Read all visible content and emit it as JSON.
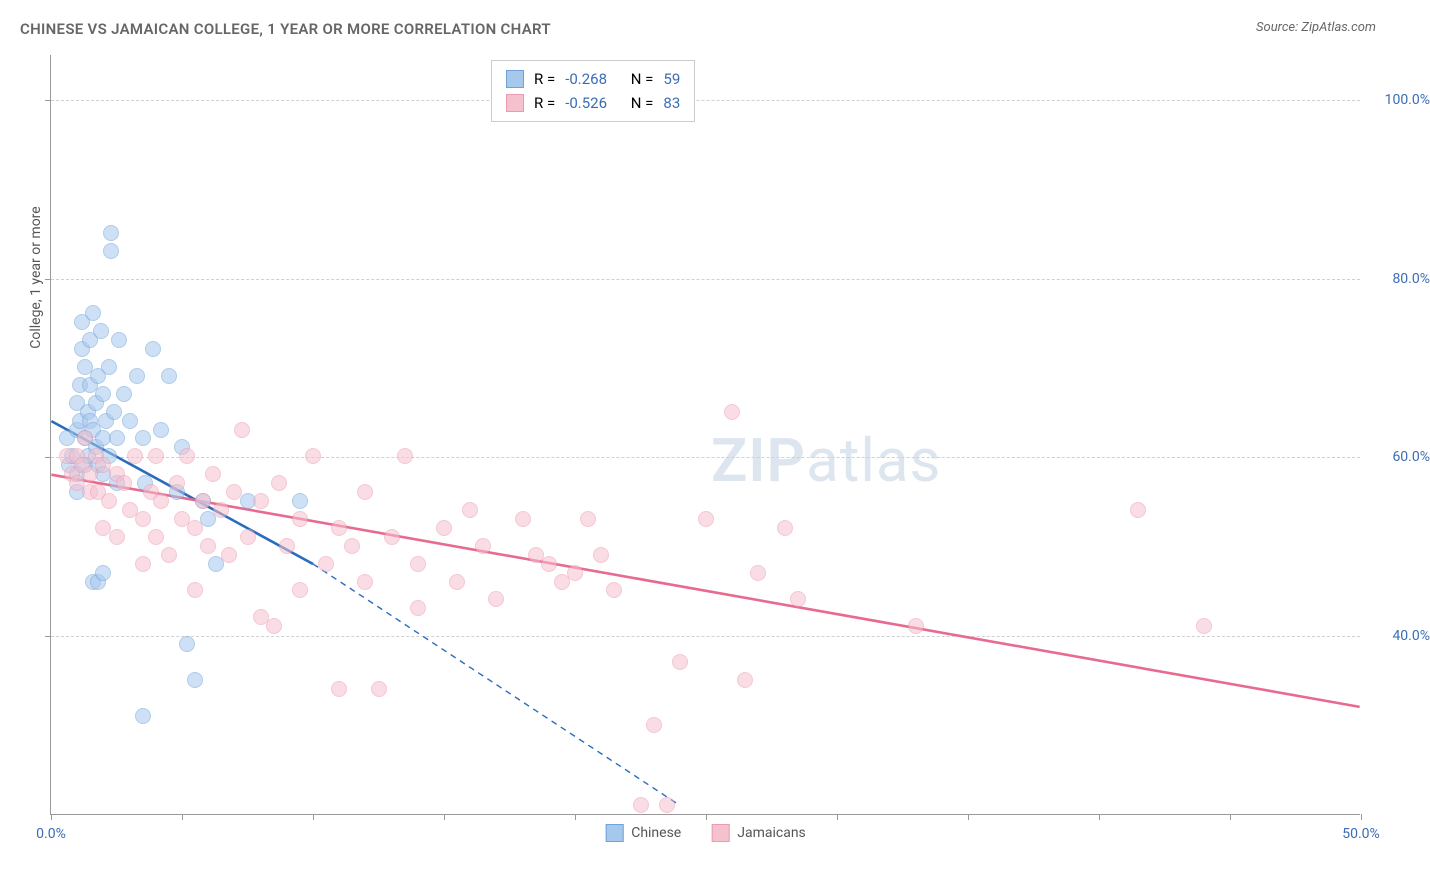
{
  "title": "CHINESE VS JAMAICAN COLLEGE, 1 YEAR OR MORE CORRELATION CHART",
  "source_label": "Source: ZipAtlas.com",
  "y_axis_title": "College, 1 year or more",
  "watermark": {
    "bold": "ZIP",
    "rest": "atlas"
  },
  "chart": {
    "type": "scatter",
    "background_color": "#ffffff",
    "grid_color": "#d0d0d0",
    "axis_color": "#999999",
    "xlim": [
      0,
      50
    ],
    "ylim": [
      20,
      105
    ],
    "x_tick_step": 5,
    "y_gridlines": [
      40,
      60,
      80,
      100
    ],
    "x_labels": [
      {
        "at": 0,
        "text": "0.0%"
      },
      {
        "at": 50,
        "text": "50.0%"
      }
    ],
    "y_labels": [
      {
        "at": 40,
        "text": "40.0%"
      },
      {
        "at": 60,
        "text": "60.0%"
      },
      {
        "at": 80,
        "text": "80.0%"
      },
      {
        "at": 100,
        "text": "100.0%"
      }
    ],
    "marker_radius": 8,
    "marker_opacity": 0.55,
    "series": [
      {
        "id": "chinese",
        "label": "Chinese",
        "fill": "#a7c8ed",
        "stroke": "#6fa3d8",
        "line_color": "#2b6bbd",
        "line_width": 2.6,
        "line_from": {
          "x": 0,
          "y": 64
        },
        "line_to": {
          "x": 10,
          "y": 48
        },
        "line_extrap_to": {
          "x": 24,
          "y": 21
        },
        "R_label": "R =",
        "R_value": "-0.268",
        "N_label": "N =",
        "N_value": "59",
        "points": [
          [
            0.6,
            62
          ],
          [
            0.7,
            59
          ],
          [
            0.8,
            60
          ],
          [
            1.0,
            66
          ],
          [
            1.0,
            63
          ],
          [
            1.0,
            58
          ],
          [
            1.0,
            56
          ],
          [
            1.1,
            68
          ],
          [
            1.1,
            64
          ],
          [
            1.2,
            75
          ],
          [
            1.2,
            72
          ],
          [
            1.3,
            70
          ],
          [
            1.3,
            62
          ],
          [
            1.3,
            59
          ],
          [
            1.4,
            65
          ],
          [
            1.4,
            60
          ],
          [
            1.5,
            73
          ],
          [
            1.5,
            68
          ],
          [
            1.5,
            64
          ],
          [
            1.6,
            76
          ],
          [
            1.6,
            63
          ],
          [
            1.7,
            66
          ],
          [
            1.7,
            61
          ],
          [
            1.8,
            69
          ],
          [
            1.8,
            59
          ],
          [
            1.9,
            74
          ],
          [
            2.0,
            67
          ],
          [
            2.0,
            62
          ],
          [
            2.0,
            58
          ],
          [
            2.1,
            64
          ],
          [
            2.2,
            70
          ],
          [
            2.2,
            60
          ],
          [
            2.3,
            85
          ],
          [
            2.3,
            83
          ],
          [
            2.4,
            65
          ],
          [
            2.5,
            62
          ],
          [
            2.5,
            57
          ],
          [
            2.6,
            73
          ],
          [
            2.8,
            67
          ],
          [
            3.0,
            64
          ],
          [
            3.3,
            69
          ],
          [
            3.5,
            62
          ],
          [
            3.6,
            57
          ],
          [
            3.9,
            72
          ],
          [
            4.2,
            63
          ],
          [
            4.5,
            69
          ],
          [
            4.8,
            56
          ],
          [
            5.0,
            61
          ],
          [
            1.6,
            46
          ],
          [
            1.8,
            46
          ],
          [
            2.0,
            47
          ],
          [
            3.5,
            31
          ],
          [
            5.2,
            39
          ],
          [
            5.5,
            35
          ],
          [
            5.8,
            55
          ],
          [
            6.0,
            53
          ],
          [
            6.3,
            48
          ],
          [
            7.5,
            55
          ],
          [
            9.5,
            55
          ]
        ]
      },
      {
        "id": "jamaicans",
        "label": "Jamaicans",
        "fill": "#f6c1cf",
        "stroke": "#ea9bb2",
        "line_color": "#e86a8f",
        "line_width": 2.6,
        "line_from": {
          "x": 0,
          "y": 58
        },
        "line_to": {
          "x": 50,
          "y": 32
        },
        "R_label": "R =",
        "R_value": "-0.526",
        "N_label": "N =",
        "N_value": "83",
        "points": [
          [
            0.6,
            60
          ],
          [
            0.8,
            58
          ],
          [
            1.0,
            57
          ],
          [
            1.0,
            60
          ],
          [
            1.2,
            59
          ],
          [
            1.3,
            62
          ],
          [
            1.5,
            58
          ],
          [
            1.5,
            56
          ],
          [
            1.7,
            60
          ],
          [
            1.8,
            56
          ],
          [
            2.0,
            59
          ],
          [
            2.0,
            52
          ],
          [
            2.2,
            55
          ],
          [
            2.5,
            58
          ],
          [
            2.5,
            51
          ],
          [
            2.8,
            57
          ],
          [
            3.0,
            54
          ],
          [
            3.2,
            60
          ],
          [
            3.5,
            53
          ],
          [
            3.5,
            48
          ],
          [
            3.8,
            56
          ],
          [
            4.0,
            51
          ],
          [
            4.0,
            60
          ],
          [
            4.2,
            55
          ],
          [
            4.5,
            49
          ],
          [
            4.8,
            57
          ],
          [
            5.0,
            53
          ],
          [
            5.2,
            60
          ],
          [
            5.5,
            52
          ],
          [
            5.5,
            45
          ],
          [
            5.8,
            55
          ],
          [
            6.0,
            50
          ],
          [
            6.2,
            58
          ],
          [
            6.5,
            54
          ],
          [
            6.8,
            49
          ],
          [
            7.0,
            56
          ],
          [
            7.3,
            63
          ],
          [
            7.5,
            51
          ],
          [
            8.0,
            55
          ],
          [
            8.0,
            42
          ],
          [
            8.5,
            41
          ],
          [
            8.7,
            57
          ],
          [
            9.0,
            50
          ],
          [
            9.5,
            53
          ],
          [
            9.5,
            45
          ],
          [
            10.0,
            60
          ],
          [
            10.5,
            48
          ],
          [
            11.0,
            52
          ],
          [
            11.0,
            34
          ],
          [
            11.5,
            50
          ],
          [
            12.0,
            56
          ],
          [
            12.0,
            46
          ],
          [
            12.5,
            34
          ],
          [
            13.0,
            51
          ],
          [
            13.5,
            60
          ],
          [
            14.0,
            48
          ],
          [
            14.0,
            43
          ],
          [
            15.0,
            52
          ],
          [
            15.5,
            46
          ],
          [
            16.0,
            54
          ],
          [
            16.5,
            50
          ],
          [
            17.0,
            44
          ],
          [
            18.0,
            53
          ],
          [
            18.5,
            49
          ],
          [
            19.0,
            48
          ],
          [
            19.5,
            46
          ],
          [
            20.0,
            47
          ],
          [
            20.5,
            53
          ],
          [
            21.0,
            49
          ],
          [
            21.5,
            45
          ],
          [
            23.5,
            21
          ],
          [
            23.0,
            30
          ],
          [
            25.0,
            53
          ],
          [
            26.0,
            65
          ],
          [
            26.5,
            35
          ],
          [
            27.0,
            47
          ],
          [
            28.0,
            52
          ],
          [
            28.5,
            44
          ],
          [
            33.0,
            41
          ],
          [
            41.5,
            54
          ],
          [
            44.0,
            41
          ],
          [
            22.5,
            21
          ],
          [
            24.0,
            37
          ]
        ]
      }
    ]
  }
}
